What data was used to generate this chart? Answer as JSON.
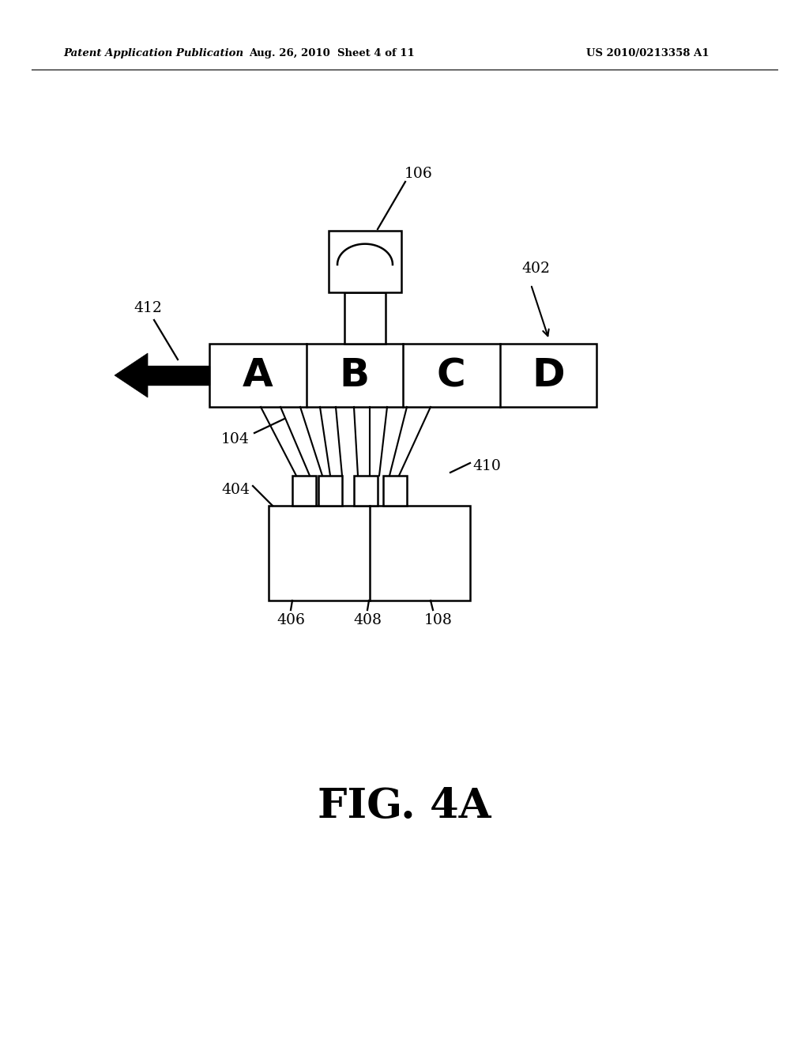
{
  "bg_color": "#ffffff",
  "header_left": "Patent Application Publication",
  "header_mid": "Aug. 26, 2010  Sheet 4 of 11",
  "header_right": "US 2010/0213358 A1",
  "fig_label": "FIG. 4A",
  "abcd_letters": [
    "A",
    "B",
    "C",
    "D"
  ],
  "line_color": "#000000",
  "text_color": "#000000",
  "lw": 1.8
}
